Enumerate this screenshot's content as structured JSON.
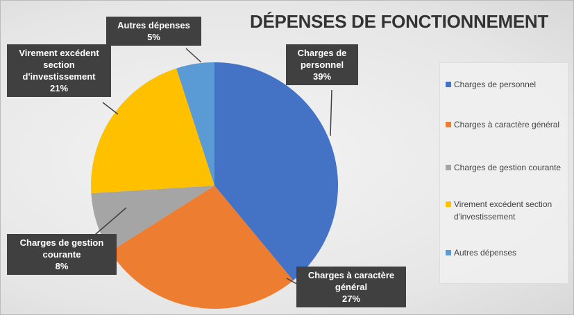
{
  "chart_data": {
    "type": "pie",
    "title": "DÉPENSES DE FONCTIONNEMENT",
    "categories": [
      "Charges de personnel",
      "Charges à caractère général",
      "Charges de gestion courante",
      "Virement excédent section d'investissement",
      "Autres dépenses"
    ],
    "values": [
      39,
      27,
      8,
      21,
      5
    ],
    "value_labels": [
      "39%",
      "27%",
      "8%",
      "21%",
      "5%"
    ],
    "colors": [
      "#4472c4",
      "#ed7d31",
      "#a5a5a5",
      "#ffc000",
      "#5b9bd5"
    ],
    "legend": "right"
  }
}
